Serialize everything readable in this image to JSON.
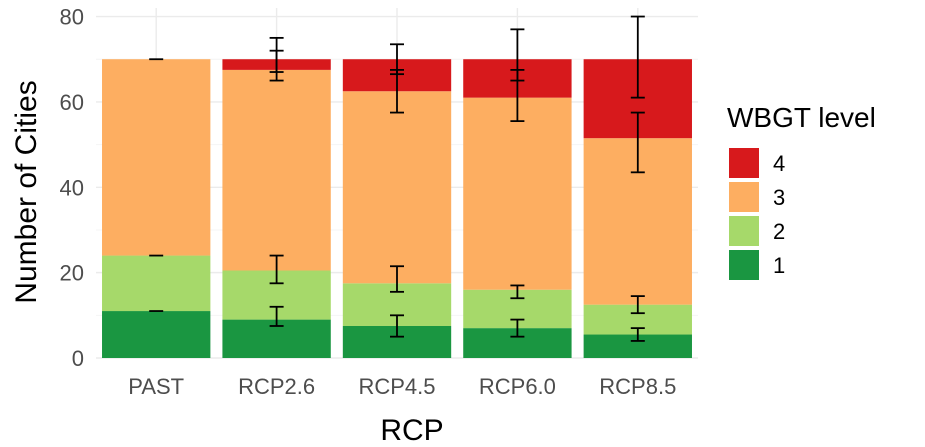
{
  "chart_data": {
    "type": "bar",
    "stacked": true,
    "title": "",
    "xlabel": "RCP",
    "ylabel": "Number of Cities",
    "ylim": [
      0,
      82
    ],
    "yticks": [
      0,
      20,
      40,
      60,
      80
    ],
    "grid": true,
    "legend_position": "right",
    "legend_title": "WBGT level",
    "categories": [
      "PAST",
      "RCP2.6",
      "RCP4.5",
      "RCP6.0",
      "RCP8.5"
    ],
    "series": [
      {
        "name": "1",
        "color": "#1a9641",
        "values": [
          11,
          9,
          7.5,
          7,
          5.5
        ]
      },
      {
        "name": "2",
        "color": "#a6d96a",
        "values": [
          13,
          11.5,
          10,
          9,
          7
        ]
      },
      {
        "name": "3",
        "color": "#fdae61",
        "values": [
          46,
          47,
          45,
          45,
          39
        ]
      },
      {
        "name": "4",
        "color": "#d7191c",
        "values": [
          0,
          2.5,
          7.5,
          9,
          18.5
        ]
      }
    ],
    "error_bars": [
      {
        "category": "PAST",
        "series": "1",
        "center": 11,
        "low": 11,
        "high": 11
      },
      {
        "category": "PAST",
        "series": "2",
        "center": 24,
        "low": 24,
        "high": 24
      },
      {
        "category": "PAST",
        "series": "3",
        "center": 70,
        "low": 70,
        "high": 70
      },
      {
        "category": "RCP2.6",
        "series": "1",
        "center": 10,
        "low": 7.5,
        "high": 12
      },
      {
        "category": "RCP2.6",
        "series": "2",
        "center": 21,
        "low": 17.5,
        "high": 24
      },
      {
        "category": "RCP2.6",
        "series": "3",
        "center": 68.5,
        "low": 65,
        "high": 72
      },
      {
        "category": "RCP2.6",
        "series": "4",
        "center": 71,
        "low": 67,
        "high": 75
      },
      {
        "category": "RCP4.5",
        "series": "1",
        "center": 7.5,
        "low": 5,
        "high": 10
      },
      {
        "category": "RCP4.5",
        "series": "2",
        "center": 18.5,
        "low": 15.5,
        "high": 21.5
      },
      {
        "category": "RCP4.5",
        "series": "3",
        "center": 62.5,
        "low": 57.5,
        "high": 67.5
      },
      {
        "category": "RCP4.5",
        "series": "4",
        "center": 70,
        "low": 66.5,
        "high": 73.5
      },
      {
        "category": "RCP6.0",
        "series": "1",
        "center": 7,
        "low": 5,
        "high": 9
      },
      {
        "category": "RCP6.0",
        "series": "2",
        "center": 15.5,
        "low": 14,
        "high": 17
      },
      {
        "category": "RCP6.0",
        "series": "3",
        "center": 61.5,
        "low": 55.5,
        "high": 67.5
      },
      {
        "category": "RCP6.0",
        "series": "4",
        "center": 71,
        "low": 65,
        "high": 77
      },
      {
        "category": "RCP8.5",
        "series": "1",
        "center": 5.5,
        "low": 4,
        "high": 7
      },
      {
        "category": "RCP8.5",
        "series": "2",
        "center": 12.5,
        "low": 10.5,
        "high": 14.5
      },
      {
        "category": "RCP8.5",
        "series": "3",
        "center": 50.5,
        "low": 43.5,
        "high": 57.5
      },
      {
        "category": "RCP8.5",
        "series": "4",
        "center": 70.5,
        "low": 61,
        "high": 80
      }
    ]
  }
}
